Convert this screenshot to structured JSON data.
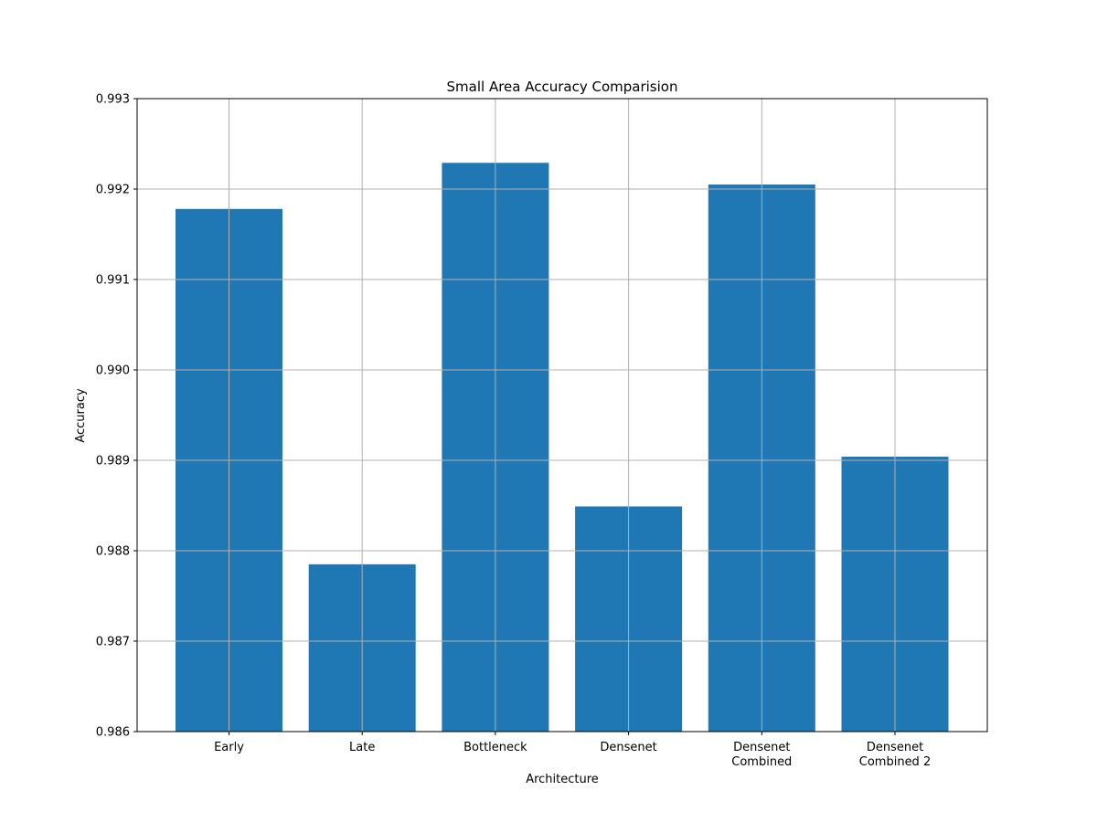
{
  "chart_data": {
    "type": "bar",
    "title": "Small Area Accuracy Comparision",
    "xlabel": "Architecture",
    "ylabel": "Accuracy",
    "categories": [
      [
        "Early"
      ],
      [
        "Late"
      ],
      [
        "Bottleneck"
      ],
      [
        "Densenet"
      ],
      [
        "Densenet",
        "Combined"
      ],
      [
        "Densenet",
        "Combined 2"
      ]
    ],
    "values": [
      0.99178,
      0.98785,
      0.99229,
      0.98849,
      0.99205,
      0.98904
    ],
    "ylim": [
      0.986,
      0.993
    ],
    "yticks": [
      "0.986",
      "0.987",
      "0.988",
      "0.989",
      "0.990",
      "0.991",
      "0.992",
      "0.993"
    ],
    "grid": true,
    "colors": {
      "bar": "#1f77b4",
      "grid": "#b0b0b0",
      "axis": "#000000"
    }
  }
}
